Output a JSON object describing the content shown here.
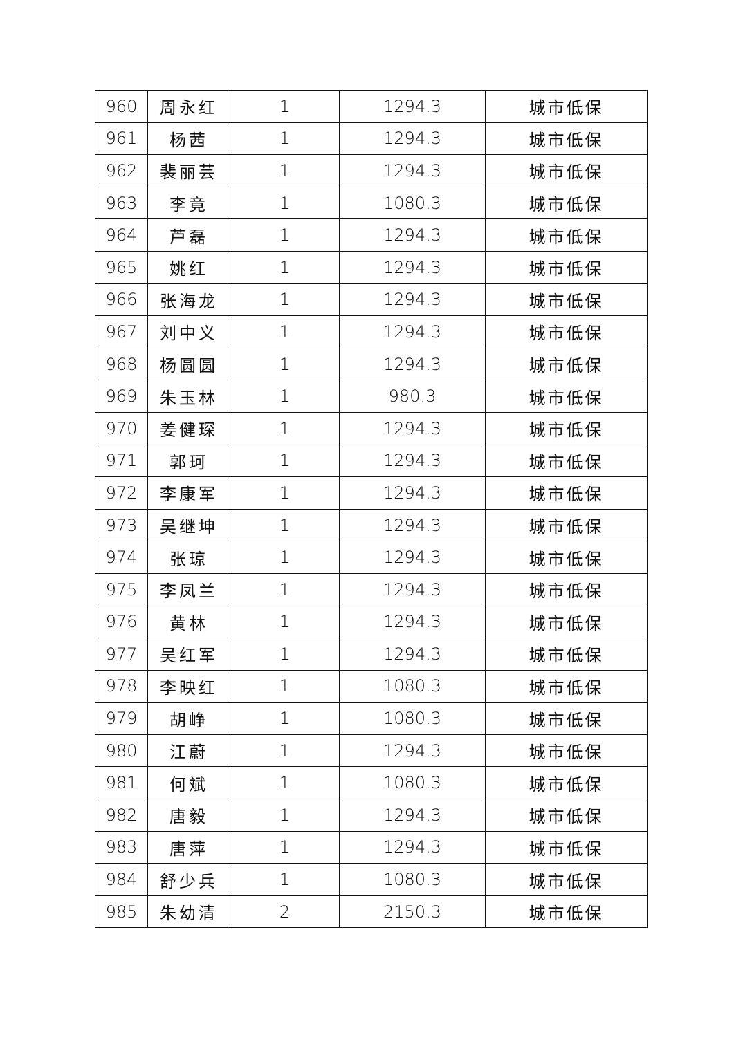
{
  "table": {
    "rows": [
      [
        "960",
        "周永红",
        "1",
        "1294.3",
        "城市低保"
      ],
      [
        "961",
        "杨茜",
        "1",
        "1294.3",
        "城市低保"
      ],
      [
        "962",
        "裴丽芸",
        "1",
        "1294.3",
        "城市低保"
      ],
      [
        "963",
        "李竟",
        "1",
        "1080.3",
        "城市低保"
      ],
      [
        "964",
        "芦磊",
        "1",
        "1294.3",
        "城市低保"
      ],
      [
        "965",
        "姚红",
        "1",
        "1294.3",
        "城市低保"
      ],
      [
        "966",
        "张海龙",
        "1",
        "1294.3",
        "城市低保"
      ],
      [
        "967",
        "刘中义",
        "1",
        "1294.3",
        "城市低保"
      ],
      [
        "968",
        "杨圆圆",
        "1",
        "1294.3",
        "城市低保"
      ],
      [
        "969",
        "朱玉林",
        "1",
        "980.3",
        "城市低保"
      ],
      [
        "970",
        "姜健琛",
        "1",
        "1294.3",
        "城市低保"
      ],
      [
        "971",
        "郭珂",
        "1",
        "1294.3",
        "城市低保"
      ],
      [
        "972",
        "李康军",
        "1",
        "1294.3",
        "城市低保"
      ],
      [
        "973",
        "吴继坤",
        "1",
        "1294.3",
        "城市低保"
      ],
      [
        "974",
        "张琼",
        "1",
        "1294.3",
        "城市低保"
      ],
      [
        "975",
        "李凤兰",
        "1",
        "1294.3",
        "城市低保"
      ],
      [
        "976",
        "黄林",
        "1",
        "1294.3",
        "城市低保"
      ],
      [
        "977",
        "吴红军",
        "1",
        "1294.3",
        "城市低保"
      ],
      [
        "978",
        "李映红",
        "1",
        "1080.3",
        "城市低保"
      ],
      [
        "979",
        "胡峥",
        "1",
        "1080.3",
        "城市低保"
      ],
      [
        "980",
        "江蔚",
        "1",
        "1294.3",
        "城市低保"
      ],
      [
        "981",
        "何斌",
        "1",
        "1080.3",
        "城市低保"
      ],
      [
        "982",
        "唐毅",
        "1",
        "1294.3",
        "城市低保"
      ],
      [
        "983",
        "唐萍",
        "1",
        "1294.3",
        "城市低保"
      ],
      [
        "984",
        "舒少兵",
        "1",
        "1080.3",
        "城市低保"
      ],
      [
        "985",
        "朱幼清",
        "2",
        "2150.3",
        "城市低保"
      ]
    ]
  }
}
